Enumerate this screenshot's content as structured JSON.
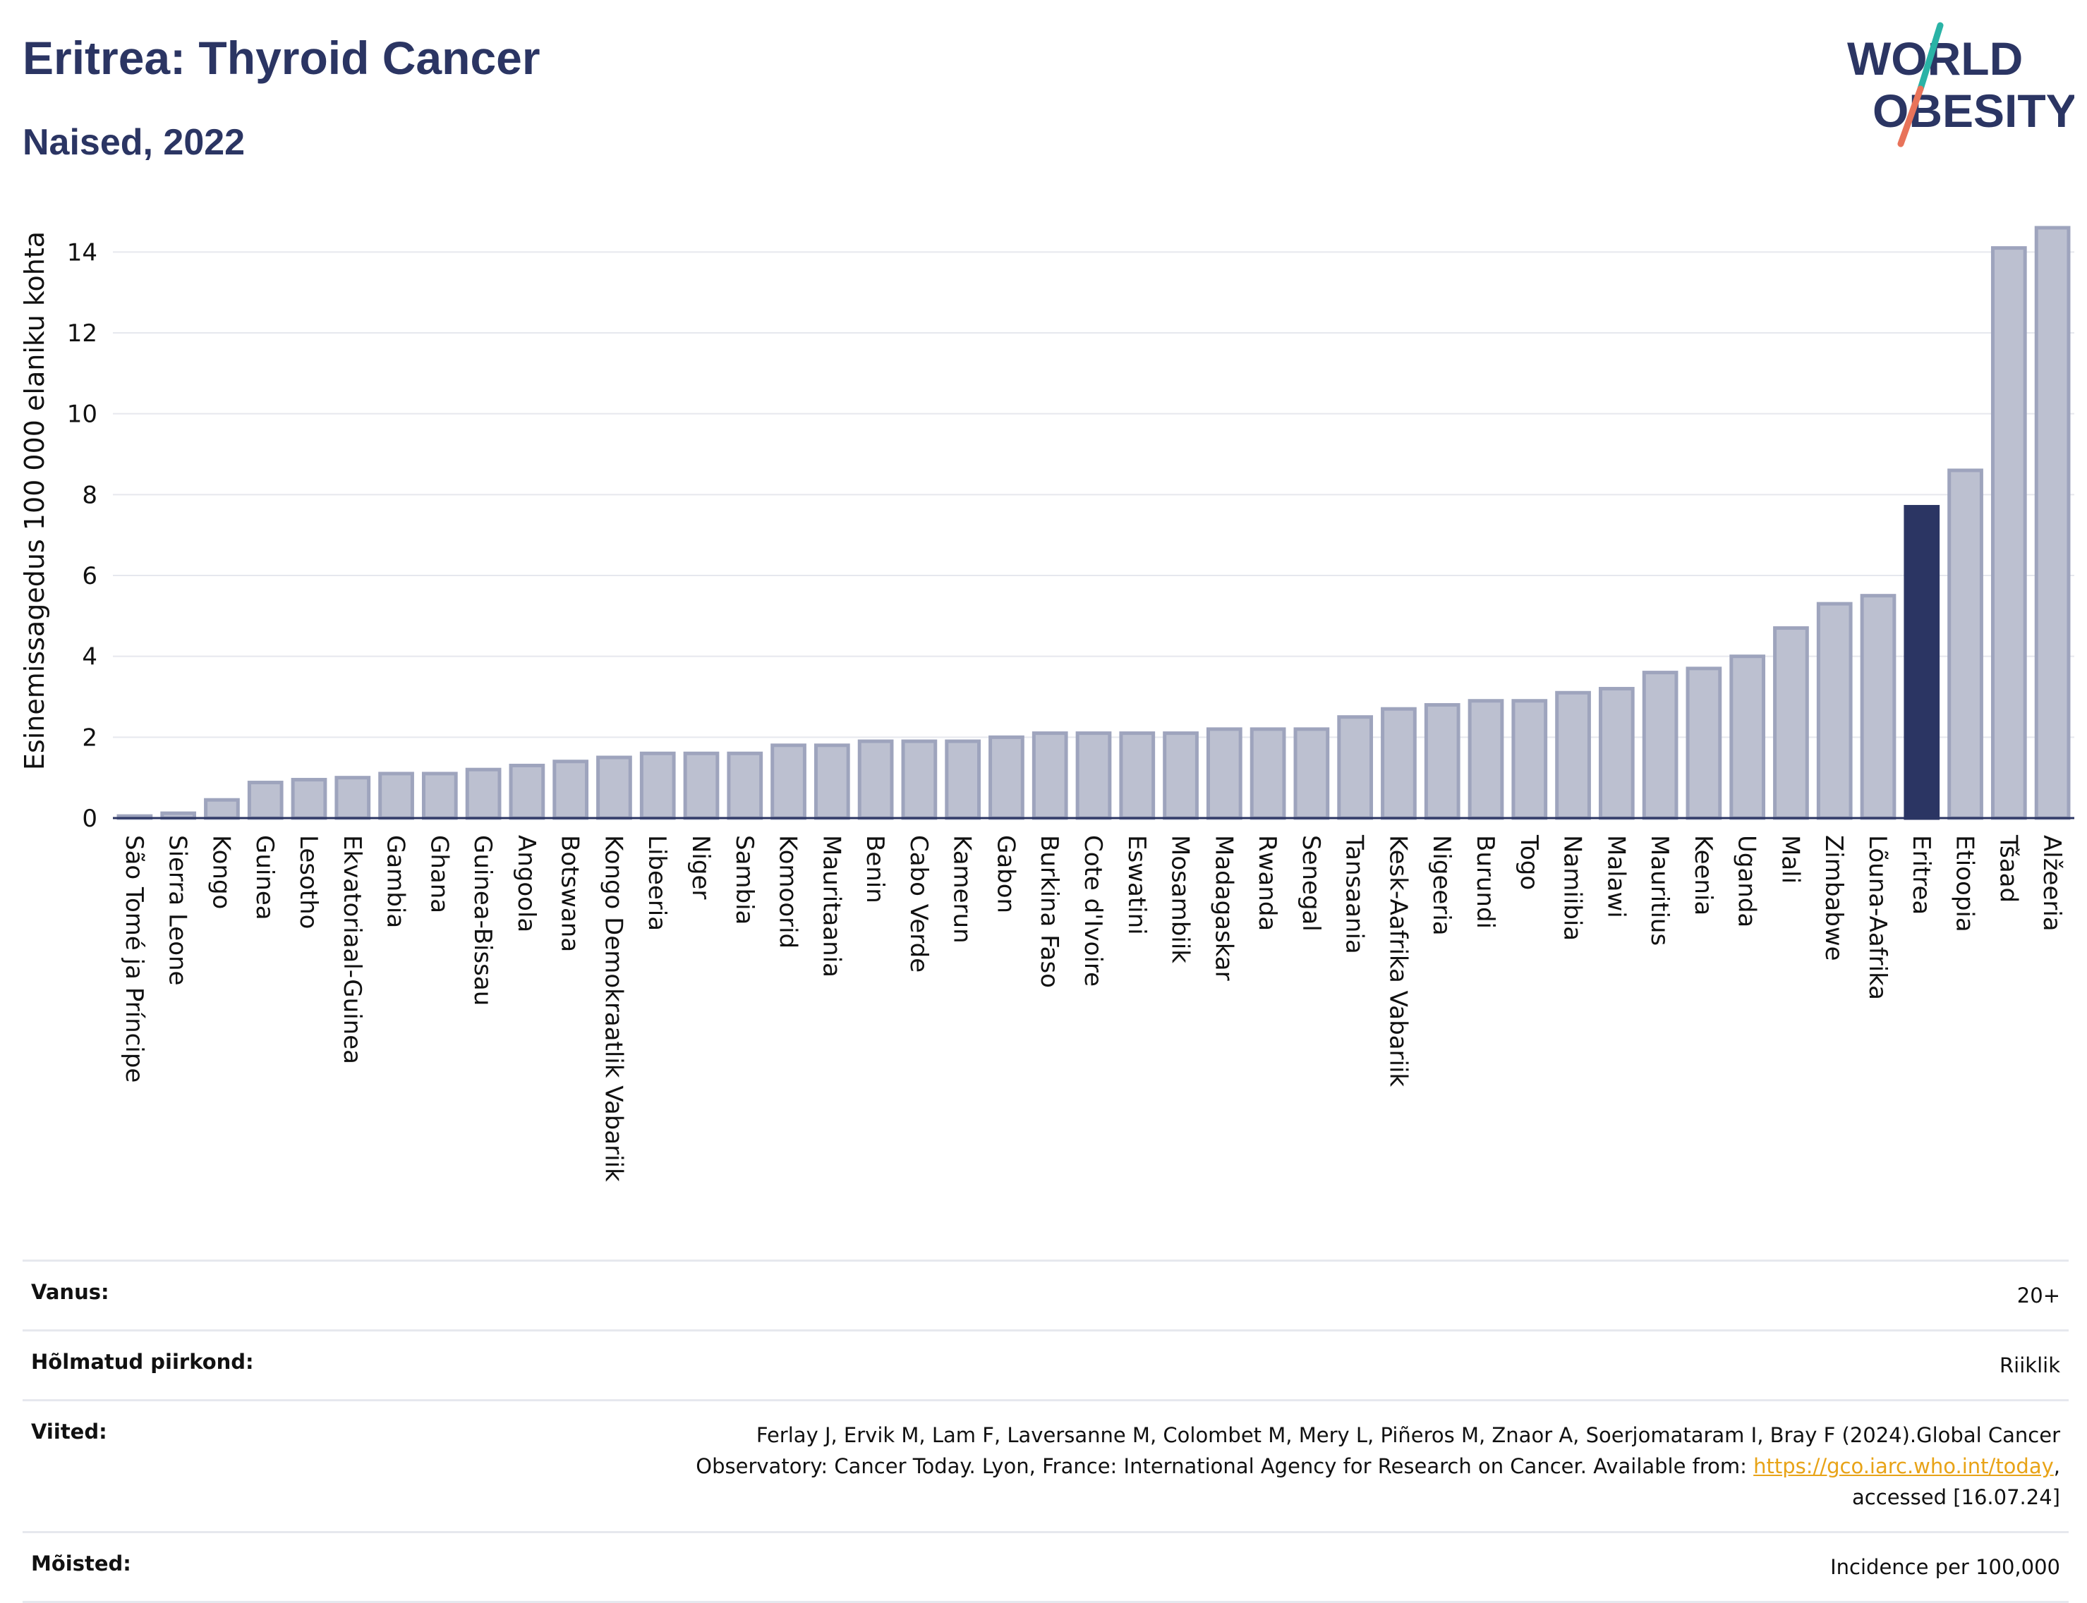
{
  "header": {
    "title": "Eritrea: Thyroid Cancer",
    "subtitle": "Naised, 2022",
    "logo_line1": "WORLD",
    "logo_line2": "OBESITY"
  },
  "colors": {
    "bar": "#bcc0d0",
    "bar_stroke": "#9ea4bd",
    "highlight": "#2b3563",
    "title": "#2b3563",
    "logo_teal": "#2ab3a6",
    "logo_coral": "#e8735a"
  },
  "chart_data": {
    "type": "bar",
    "ylabel": "Esinemissagedus 100 000 elaniku kohta",
    "xlabel": "",
    "ylim": [
      0,
      15
    ],
    "yticks": [
      0,
      2,
      4,
      6,
      8,
      10,
      12,
      14
    ],
    "grid": true,
    "highlight": "Eritrea",
    "categories": [
      "São Tomé ja Príncipe",
      "Sierra Leone",
      "Kongo",
      "Guinea",
      "Lesotho",
      "Ekvatoriaal-Guinea",
      "Gambia",
      "Ghana",
      "Guinea-Bissau",
      "Angoola",
      "Botswana",
      "Kongo Demokraatlik Vabariik",
      "Libeeria",
      "Niger",
      "Sambia",
      "Komoorid",
      "Mauritaania",
      "Benin",
      "Cabo Verde",
      "Kamerun",
      "Gabon",
      "Burkina Faso",
      "Cote d'Ivoire",
      "Eswatini",
      "Mosambiik",
      "Madagaskar",
      "Rwanda",
      "Senegal",
      "Tansaania",
      "Kesk-Aafrika Vabariik",
      "Nigeeria",
      "Burundi",
      "Togo",
      "Namiibia",
      "Malawi",
      "Mauritius",
      "Keenia",
      "Uganda",
      "Mali",
      "Zimbabwe",
      "Lõuna-Aafrika",
      "Eritrea",
      "Etioopia",
      "Tšaad",
      "Alžeeria"
    ],
    "values": [
      0.05,
      0.12,
      0.45,
      0.88,
      0.95,
      1.0,
      1.1,
      1.1,
      1.2,
      1.3,
      1.4,
      1.5,
      1.6,
      1.6,
      1.6,
      1.8,
      1.8,
      1.9,
      1.9,
      1.9,
      2.0,
      2.1,
      2.1,
      2.1,
      2.1,
      2.2,
      2.2,
      2.2,
      2.5,
      2.7,
      2.8,
      2.9,
      2.9,
      3.1,
      3.2,
      3.6,
      3.7,
      4.0,
      4.7,
      5.3,
      5.5,
      7.7,
      8.6,
      14.1,
      14.6
    ]
  },
  "info": {
    "age_label": "Vanus:",
    "age_value": "20+",
    "region_label": "Hõlmatud piirkond:",
    "region_value": "Riiklik",
    "refs_label": "Viited:",
    "refs_text_1": "Ferlay J, Ervik M, Lam F, Laversanne M, Colombet M, Mery L, Piñeros M, Znaor A, Soerjomataram I, Bray F (2024).Global Cancer",
    "refs_text_2": "Observatory: Cancer Today. Lyon, France: International Agency for Research on Cancer. Available from: ",
    "refs_link": "https://gco.iarc.who.int/today",
    "refs_text_3": ",",
    "refs_text_4": "accessed [16.07.24]",
    "def_label": "Mõisted:",
    "def_value": "Incidence per 100,000"
  }
}
